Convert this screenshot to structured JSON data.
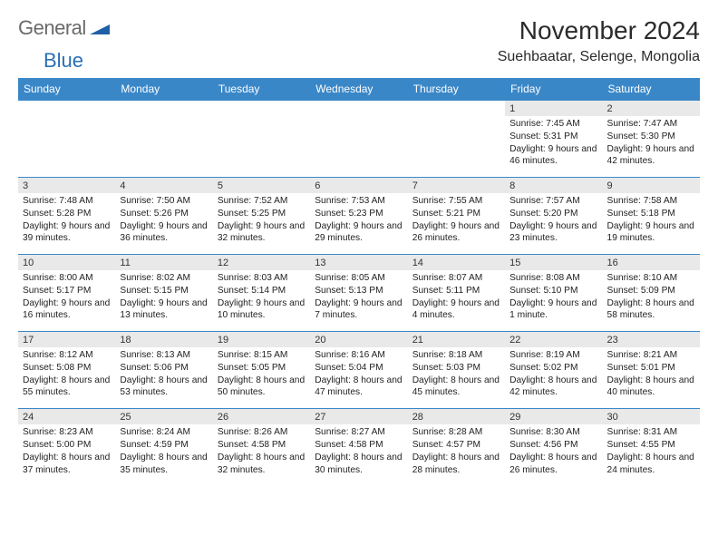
{
  "logo": {
    "word1": "General",
    "word2": "Blue",
    "tri_fill": "#1f5fa6"
  },
  "title": "November 2024",
  "location": "Suehbaatar, Selenge, Mongolia",
  "colors": {
    "header_bg": "#3a87c8",
    "daynum_bg": "#e9e9e9",
    "rule": "#3a87c8"
  },
  "layout": {
    "cols": 7,
    "cell_font_pt": 7.5,
    "header_font_pt": 9
  },
  "daynames": [
    "Sunday",
    "Monday",
    "Tuesday",
    "Wednesday",
    "Thursday",
    "Friday",
    "Saturday"
  ],
  "weeks": [
    [
      null,
      null,
      null,
      null,
      null,
      {
        "n": "1",
        "sunrise": "7:45 AM",
        "sunset": "5:31 PM",
        "daylight": "9 hours and 46 minutes."
      },
      {
        "n": "2",
        "sunrise": "7:47 AM",
        "sunset": "5:30 PM",
        "daylight": "9 hours and 42 minutes."
      }
    ],
    [
      {
        "n": "3",
        "sunrise": "7:48 AM",
        "sunset": "5:28 PM",
        "daylight": "9 hours and 39 minutes."
      },
      {
        "n": "4",
        "sunrise": "7:50 AM",
        "sunset": "5:26 PM",
        "daylight": "9 hours and 36 minutes."
      },
      {
        "n": "5",
        "sunrise": "7:52 AM",
        "sunset": "5:25 PM",
        "daylight": "9 hours and 32 minutes."
      },
      {
        "n": "6",
        "sunrise": "7:53 AM",
        "sunset": "5:23 PM",
        "daylight": "9 hours and 29 minutes."
      },
      {
        "n": "7",
        "sunrise": "7:55 AM",
        "sunset": "5:21 PM",
        "daylight": "9 hours and 26 minutes."
      },
      {
        "n": "8",
        "sunrise": "7:57 AM",
        "sunset": "5:20 PM",
        "daylight": "9 hours and 23 minutes."
      },
      {
        "n": "9",
        "sunrise": "7:58 AM",
        "sunset": "5:18 PM",
        "daylight": "9 hours and 19 minutes."
      }
    ],
    [
      {
        "n": "10",
        "sunrise": "8:00 AM",
        "sunset": "5:17 PM",
        "daylight": "9 hours and 16 minutes."
      },
      {
        "n": "11",
        "sunrise": "8:02 AM",
        "sunset": "5:15 PM",
        "daylight": "9 hours and 13 minutes."
      },
      {
        "n": "12",
        "sunrise": "8:03 AM",
        "sunset": "5:14 PM",
        "daylight": "9 hours and 10 minutes."
      },
      {
        "n": "13",
        "sunrise": "8:05 AM",
        "sunset": "5:13 PM",
        "daylight": "9 hours and 7 minutes."
      },
      {
        "n": "14",
        "sunrise": "8:07 AM",
        "sunset": "5:11 PM",
        "daylight": "9 hours and 4 minutes."
      },
      {
        "n": "15",
        "sunrise": "8:08 AM",
        "sunset": "5:10 PM",
        "daylight": "9 hours and 1 minute."
      },
      {
        "n": "16",
        "sunrise": "8:10 AM",
        "sunset": "5:09 PM",
        "daylight": "8 hours and 58 minutes."
      }
    ],
    [
      {
        "n": "17",
        "sunrise": "8:12 AM",
        "sunset": "5:08 PM",
        "daylight": "8 hours and 55 minutes."
      },
      {
        "n": "18",
        "sunrise": "8:13 AM",
        "sunset": "5:06 PM",
        "daylight": "8 hours and 53 minutes."
      },
      {
        "n": "19",
        "sunrise": "8:15 AM",
        "sunset": "5:05 PM",
        "daylight": "8 hours and 50 minutes."
      },
      {
        "n": "20",
        "sunrise": "8:16 AM",
        "sunset": "5:04 PM",
        "daylight": "8 hours and 47 minutes."
      },
      {
        "n": "21",
        "sunrise": "8:18 AM",
        "sunset": "5:03 PM",
        "daylight": "8 hours and 45 minutes."
      },
      {
        "n": "22",
        "sunrise": "8:19 AM",
        "sunset": "5:02 PM",
        "daylight": "8 hours and 42 minutes."
      },
      {
        "n": "23",
        "sunrise": "8:21 AM",
        "sunset": "5:01 PM",
        "daylight": "8 hours and 40 minutes."
      }
    ],
    [
      {
        "n": "24",
        "sunrise": "8:23 AM",
        "sunset": "5:00 PM",
        "daylight": "8 hours and 37 minutes."
      },
      {
        "n": "25",
        "sunrise": "8:24 AM",
        "sunset": "4:59 PM",
        "daylight": "8 hours and 35 minutes."
      },
      {
        "n": "26",
        "sunrise": "8:26 AM",
        "sunset": "4:58 PM",
        "daylight": "8 hours and 32 minutes."
      },
      {
        "n": "27",
        "sunrise": "8:27 AM",
        "sunset": "4:58 PM",
        "daylight": "8 hours and 30 minutes."
      },
      {
        "n": "28",
        "sunrise": "8:28 AM",
        "sunset": "4:57 PM",
        "daylight": "8 hours and 28 minutes."
      },
      {
        "n": "29",
        "sunrise": "8:30 AM",
        "sunset": "4:56 PM",
        "daylight": "8 hours and 26 minutes."
      },
      {
        "n": "30",
        "sunrise": "8:31 AM",
        "sunset": "4:55 PM",
        "daylight": "8 hours and 24 minutes."
      }
    ]
  ],
  "labels": {
    "sunrise": "Sunrise:",
    "sunset": "Sunset:",
    "daylight": "Daylight:"
  }
}
